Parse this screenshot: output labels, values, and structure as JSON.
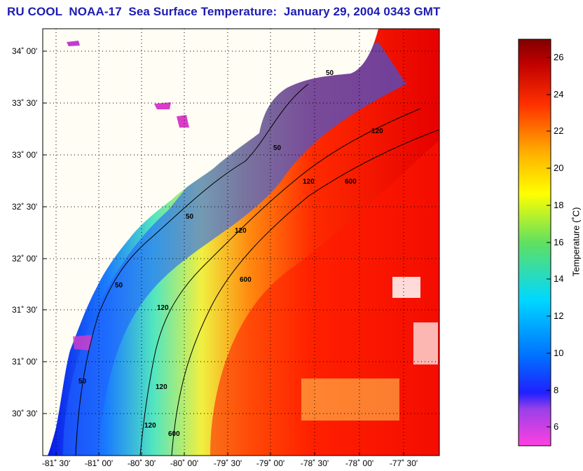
{
  "title": "RU COOL  NOAA-17  Sea Surface Temperature:  January 29, 2004 0343 GMT",
  "map": {
    "lat_labels": [
      "34˚ 00'",
      "33˚ 30'",
      "33˚ 00'",
      "32˚ 30'",
      "32˚ 00'",
      "31˚ 30'",
      "31˚ 00'",
      "30˚ 30'"
    ],
    "lon_labels": [
      "-81˚ 30'",
      "-81˚ 00'",
      "-80˚ 30'",
      "-80˚ 00'",
      "-79˚ 30'",
      "-79˚ 00'",
      "-78˚ 30'",
      "-78˚ 00'",
      "-77˚ 30'"
    ],
    "contour_labels": [
      "50",
      "50",
      "50",
      "50",
      "50",
      "120",
      "120",
      "120",
      "120",
      "120",
      "120",
      "600",
      "600",
      "600"
    ],
    "colors": {
      "land": "#fffdf4",
      "grid": "#000000",
      "cloud_flag": "#d83cc8"
    }
  },
  "colorbar": {
    "label": "Temperature (˚C)",
    "ticks": [
      "26",
      "24",
      "22",
      "20",
      "18",
      "16",
      "14",
      "12",
      "10",
      "8",
      "6"
    ],
    "range": [
      5,
      27
    ],
    "colors": [
      "#ff40e0",
      "#2020ff",
      "#00c8ff",
      "#40e080",
      "#ffff00",
      "#ff8000",
      "#ff0000",
      "#800000"
    ]
  }
}
